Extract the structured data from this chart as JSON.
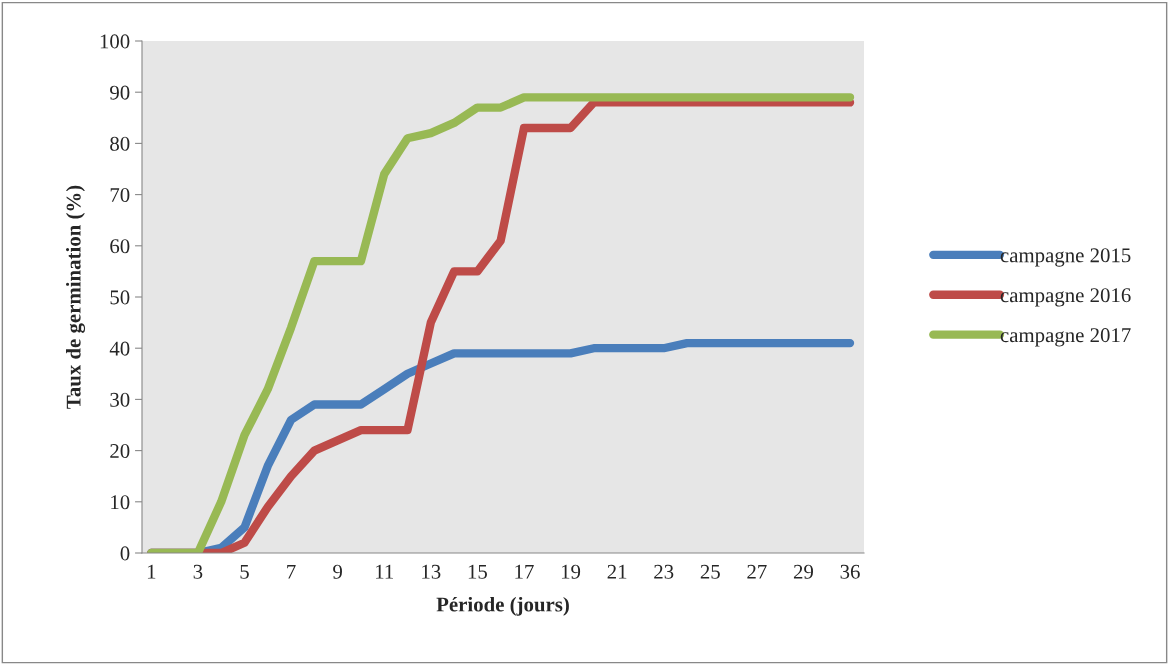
{
  "chart_data": {
    "type": "line",
    "xlabel": "Période (jours)",
    "ylabel": "Taux de germination (%)",
    "categories": [
      "1",
      null,
      "3",
      null,
      "5",
      null,
      "7",
      null,
      "9",
      null,
      "11",
      null,
      "13",
      null,
      "15",
      null,
      "17",
      null,
      "19",
      null,
      "21",
      null,
      "23",
      null,
      "25",
      null,
      "27",
      null,
      "29",
      null,
      "36"
    ],
    "series": [
      {
        "name": "campagne 2015",
        "color": "#4a7ebb",
        "values": [
          0,
          0,
          0,
          1,
          5,
          17,
          26,
          29,
          29,
          29,
          32,
          35,
          37,
          39,
          39,
          39,
          39,
          39,
          39,
          40,
          40,
          40,
          40,
          41,
          41,
          41,
          41,
          41,
          41,
          41,
          41
        ]
      },
      {
        "name": "campagne 2016",
        "color": "#be4b48",
        "values": [
          0,
          0,
          0,
          0,
          2,
          9,
          15,
          20,
          22,
          24,
          24,
          24,
          45,
          55,
          55,
          61,
          83,
          83,
          83,
          88,
          88,
          88,
          88,
          88,
          88,
          88,
          88,
          88,
          88,
          88,
          88
        ]
      },
      {
        "name": "campagne 2017",
        "color": "#98b954",
        "values": [
          0,
          0,
          0,
          10,
          23,
          32,
          44,
          57,
          57,
          57,
          74,
          81,
          82,
          84,
          87,
          87,
          89,
          89,
          89,
          89,
          89,
          89,
          89,
          89,
          89,
          89,
          89,
          89,
          89,
          89,
          89
        ]
      }
    ],
    "ylim": [
      0,
      100
    ],
    "yticks": [
      0,
      10,
      20,
      30,
      40,
      50,
      60,
      70,
      80,
      90,
      100
    ],
    "grid": false,
    "legend": "right",
    "marker": "none",
    "line_style": "solid"
  }
}
